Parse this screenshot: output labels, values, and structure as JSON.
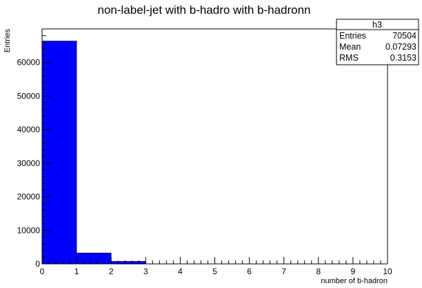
{
  "chart_data": {
    "type": "bar",
    "title": "non-label-jet with b-hadro with b-hadronn",
    "xlabel": "number of b-hadron",
    "ylabel": "Entries",
    "xlim": [
      0,
      10
    ],
    "ylim": [
      0,
      70000
    ],
    "bin_width": 1,
    "x_ticks": [
      "0",
      "1",
      "2",
      "3",
      "4",
      "5",
      "6",
      "7",
      "8",
      "9",
      "10"
    ],
    "y_ticks": [
      "0",
      "10000",
      "20000",
      "30000",
      "40000",
      "50000",
      "60000"
    ],
    "bins": [
      {
        "x": 0,
        "value": 66400
      },
      {
        "x": 1,
        "value": 3250
      },
      {
        "x": 2,
        "value": 750
      },
      {
        "x": 3,
        "value": 0
      },
      {
        "x": 4,
        "value": 0
      },
      {
        "x": 5,
        "value": 0
      },
      {
        "x": 6,
        "value": 0
      },
      {
        "x": 7,
        "value": 0
      },
      {
        "x": 8,
        "value": 0
      },
      {
        "x": 9,
        "value": 0
      }
    ],
    "bar_color": "#0000ff",
    "grid": false
  },
  "stats_box": {
    "name": "h3",
    "rows": [
      {
        "label": "Entries",
        "value": "70504"
      },
      {
        "label": "Mean",
        "value": "0.07293"
      },
      {
        "label": "RMS",
        "value": "0.3153"
      }
    ]
  }
}
